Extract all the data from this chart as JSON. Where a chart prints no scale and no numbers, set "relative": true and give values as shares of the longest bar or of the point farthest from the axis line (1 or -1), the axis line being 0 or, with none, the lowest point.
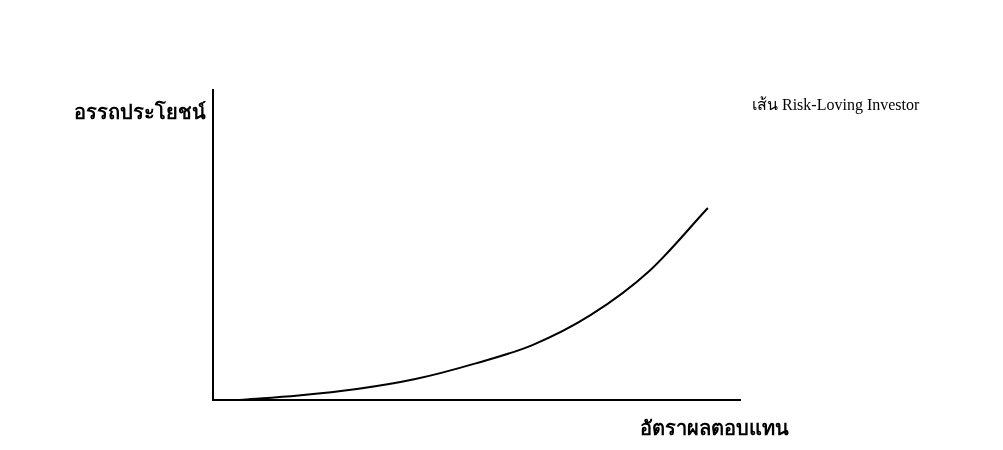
{
  "chart_data": {
    "type": "line",
    "relative": true,
    "xlabel": "อัตราผลตอบแทน",
    "ylabel": "อรรถประโยชน์",
    "categories": [
      null,
      null,
      null,
      null,
      null,
      null,
      null,
      null,
      null
    ],
    "series": [
      {
        "name": "เส้น Risk-Loving Investor",
        "color": "#000000",
        "values": [
          0,
          0.023,
          0.057,
          0.109,
          0.188,
          0.286,
          0.443,
          0.672,
          1
        ]
      }
    ],
    "marker": "none",
    "grid": false,
    "legend": false
  }
}
